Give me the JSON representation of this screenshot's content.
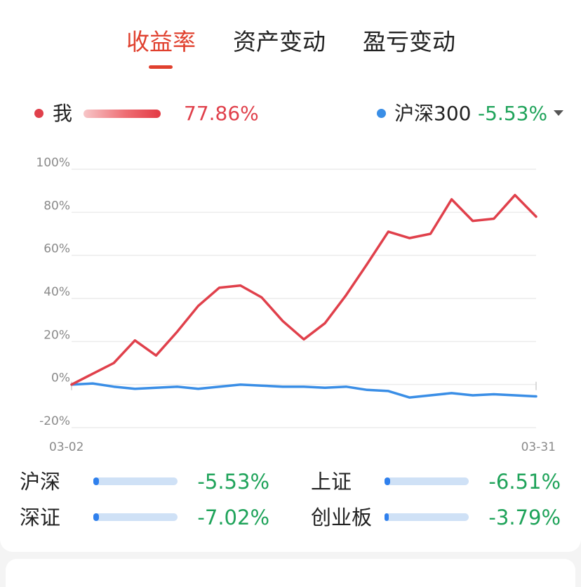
{
  "tabs": [
    {
      "label": "收益率",
      "active": true
    },
    {
      "label": "资产变动",
      "active": false
    },
    {
      "label": "盈亏变动",
      "active": false
    }
  ],
  "legend": {
    "mine": {
      "label": "我",
      "value": "77.86%",
      "color": "#e0404b"
    },
    "benchmark": {
      "label": "沪深300",
      "value": "-5.53%",
      "color": "#3a8ee6",
      "value_color": "#1fa35a"
    }
  },
  "chart_data": {
    "type": "line",
    "x_start_label": "03-02",
    "x_end_label": "03-31",
    "y_ticks": [
      "100%",
      "80%",
      "60%",
      "40%",
      "20%",
      "0%",
      "-20%"
    ],
    "ylim": [
      -20,
      100
    ],
    "series": [
      {
        "name": "我",
        "color": "#e0404b",
        "values": [
          0,
          5,
          10,
          20.5,
          13.5,
          24.5,
          36.5,
          45,
          46,
          40.5,
          29.5,
          21,
          28.5,
          41.5,
          56,
          71,
          68,
          70,
          86,
          76,
          77,
          88,
          78
        ]
      },
      {
        "name": "沪深300",
        "color": "#3a8ee6",
        "values": [
          0,
          0.5,
          -1,
          -2,
          -1.5,
          -1,
          -2,
          -1,
          0,
          -0.5,
          -1,
          -1,
          -1.5,
          -1,
          -2.5,
          -3,
          -6,
          -5,
          -4,
          -5,
          -4.5,
          -5,
          -5.5
        ]
      }
    ]
  },
  "indices": [
    {
      "name": "沪深",
      "value": "-5.53%"
    },
    {
      "name": "上证",
      "value": "-6.51%"
    },
    {
      "name": "深证",
      "value": "-7.02%"
    },
    {
      "name": "创业板",
      "value": "-3.79%"
    }
  ]
}
